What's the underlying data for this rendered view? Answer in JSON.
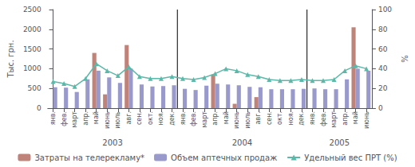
{
  "chart_data": {
    "type": "bar",
    "categories": [
      "янв.",
      "фев.",
      "март",
      "апр.",
      "май",
      "июнь",
      "июль",
      "авг.",
      "сен.",
      "окт.",
      "ноя.",
      "дек.",
      "янв.",
      "фев.",
      "март",
      "апр.",
      "май",
      "июнь",
      "июль",
      "авг.",
      "сен.",
      "окт.",
      "ноя.",
      "дек.",
      "янв.",
      "фев.",
      "март",
      "апр.",
      "май",
      "июнь"
    ],
    "series": [
      {
        "name": "Затраты на телерекламу*",
        "type": "bar",
        "color": "#c0837a",
        "values": [
          0,
          0,
          0,
          0,
          1400,
          350,
          0,
          1600,
          0,
          0,
          0,
          0,
          0,
          0,
          0,
          850,
          0,
          110,
          0,
          280,
          0,
          0,
          0,
          0,
          0,
          0,
          0,
          0,
          2050,
          0
        ]
      },
      {
        "name": "Объем аптечных продаж",
        "type": "bar",
        "color": "#9999cc",
        "values": [
          530,
          520,
          410,
          730,
          950,
          780,
          640,
          1000,
          600,
          550,
          560,
          580,
          490,
          460,
          570,
          620,
          600,
          580,
          540,
          530,
          480,
          480,
          480,
          490,
          500,
          480,
          480,
          730,
          1000,
          950
        ]
      },
      {
        "name": "Удельный вес ПРТ (%)",
        "type": "line",
        "axis": "y2",
        "color": "#5cb8a8",
        "marker": "triangle",
        "values": [
          27,
          25,
          22,
          30,
          45,
          38,
          33,
          42,
          32,
          30,
          30,
          32,
          30,
          29,
          31,
          35,
          40,
          38,
          34,
          32,
          29,
          28,
          28,
          29,
          28,
          28,
          29,
          38,
          43,
          40
        ]
      }
    ],
    "ylabel": "Тыс. грн.",
    "y2label": "%",
    "ylim": [
      0,
      2500
    ],
    "yticks": [
      0,
      500,
      1000,
      1500,
      2000,
      2500
    ],
    "y2lim": [
      0,
      100
    ],
    "y2ticks": [
      0,
      20,
      40,
      60,
      80,
      100
    ],
    "annotations": [
      {
        "text": "2003",
        "x": 5.5
      },
      {
        "text": "2004",
        "x": 17.5
      },
      {
        "text": "2005",
        "x": 26.5
      }
    ],
    "dividers": [
      11.5,
      23.5
    ],
    "grid": false,
    "legend": "bottom"
  }
}
